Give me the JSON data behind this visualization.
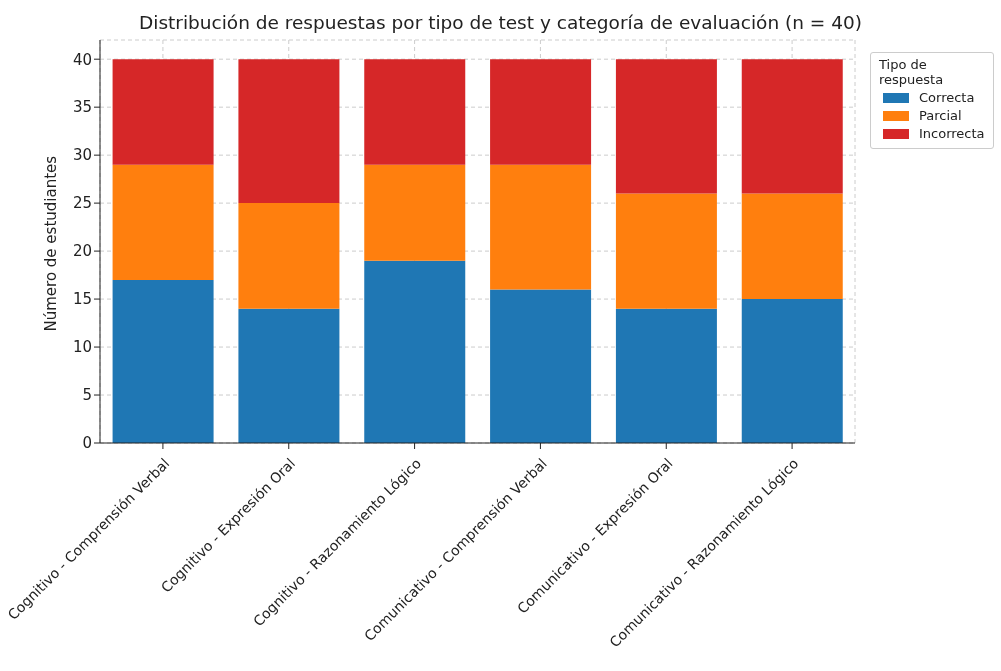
{
  "chart_data": {
    "type": "bar",
    "title": "Distribución de respuestas por tipo de test y categoría de evaluación (n = 40)",
    "ylabel": "Número de estudiantes",
    "legend_title": "Tipo de respuesta",
    "categories": [
      "Cognitivo - Comprensión Verbal",
      "Cognitivo - Expresión Oral",
      "Cognitivo - Razonamiento Lógico",
      "Comunicativo - Comprensión Verbal",
      "Comunicativo - Expresión Oral",
      "Comunicativo - Razonamiento Lógico"
    ],
    "series": [
      {
        "name": "Correcta",
        "color": "#1f77b4",
        "values": [
          17,
          14,
          19,
          16,
          14,
          15
        ]
      },
      {
        "name": "Parcial",
        "color": "#ff7f0e",
        "values": [
          12,
          11,
          10,
          13,
          12,
          11
        ]
      },
      {
        "name": "Incorrecta",
        "color": "#d62728",
        "values": [
          11,
          15,
          11,
          11,
          14,
          14
        ]
      }
    ],
    "stacked": true,
    "ylim": [
      0,
      42
    ],
    "yticks": [
      0,
      5,
      10,
      15,
      20,
      25,
      30,
      35,
      40
    ],
    "grid": true,
    "legend": "top right"
  }
}
